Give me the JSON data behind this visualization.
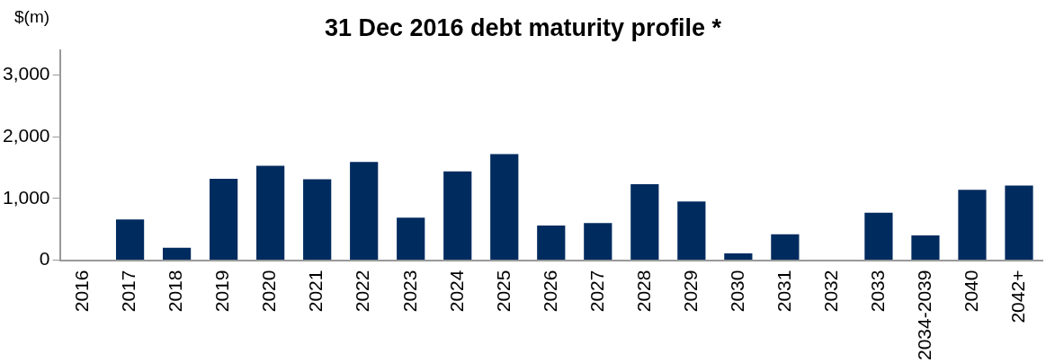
{
  "chart_data": {
    "type": "bar",
    "title": "31 Dec 2016 debt maturity profile *",
    "ylabel": "$(m)",
    "categories": [
      "2016",
      "2017",
      "2018",
      "2019",
      "2020",
      "2021",
      "2022",
      "2023",
      "2024",
      "2025",
      "2026",
      "2027",
      "2028",
      "2029",
      "2030",
      "2031",
      "2032",
      "2033",
      "2034-2039",
      "2040",
      "2042+"
    ],
    "values": [
      0,
      660,
      200,
      1320,
      1530,
      1310,
      1590,
      690,
      1440,
      1720,
      560,
      600,
      1230,
      950,
      110,
      420,
      0,
      770,
      400,
      1140,
      1210
    ],
    "color": "#002b5f",
    "ylim": [
      0,
      3400
    ],
    "yticks": [
      {
        "value": 0,
        "label": "0"
      },
      {
        "value": 1000,
        "label": "1,000"
      },
      {
        "value": 2000,
        "label": "2,000"
      },
      {
        "value": 3000,
        "label": "3,000"
      }
    ],
    "grid": false,
    "legend": false
  }
}
